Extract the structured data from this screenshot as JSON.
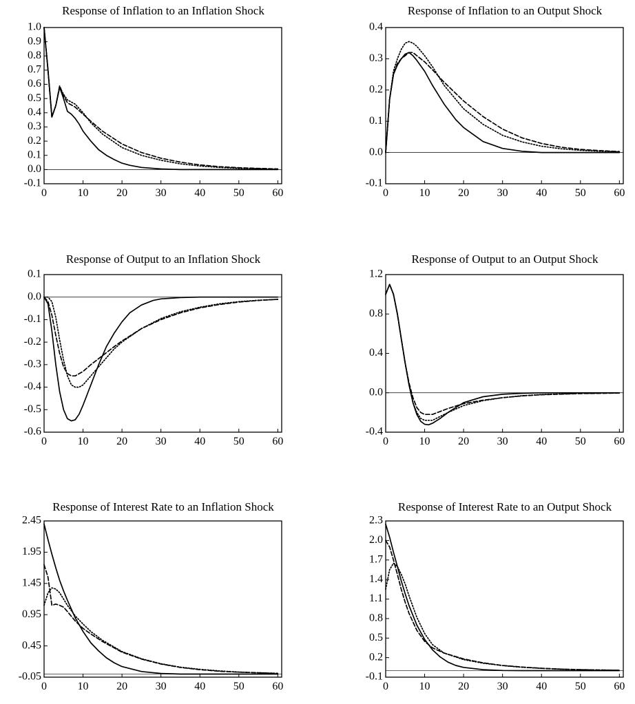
{
  "chart_data": [
    {
      "type": "line",
      "title": "Response of Inflation to an Inflation Shock",
      "xlim": [
        0,
        61
      ],
      "ylim": [
        -0.1,
        1.0
      ],
      "xticks": [
        0,
        10,
        20,
        30,
        40,
        50,
        60
      ],
      "xtick_labels": [
        "0",
        "10",
        "20",
        "30",
        "40",
        "50",
        "60"
      ],
      "yticks": [
        1.0,
        0.9,
        0.8,
        0.7,
        0.6,
        0.5,
        0.4,
        0.3,
        0.2,
        0.1,
        0.0,
        -0.1
      ],
      "ytick_labels": [
        "1.0",
        "0.9",
        "0.8",
        "0.7",
        "0.6",
        "0.5",
        "0.4",
        "0.3",
        "0.2",
        "0.1",
        "0.0",
        "-0.1"
      ],
      "zero_line": 0,
      "series": [
        {
          "style": "solid",
          "x": [
            0,
            1,
            2,
            3,
            4,
            5,
            6,
            7,
            8,
            9,
            10,
            12,
            14,
            16,
            18,
            20,
            22,
            25,
            30,
            35,
            40,
            50,
            60
          ],
          "y": [
            1.0,
            0.7,
            0.37,
            0.45,
            0.58,
            0.5,
            0.41,
            0.39,
            0.36,
            0.32,
            0.27,
            0.2,
            0.14,
            0.1,
            0.07,
            0.045,
            0.03,
            0.015,
            0.004,
            0.0,
            0.0,
            0.0,
            0.0
          ]
        },
        {
          "style": "dashed",
          "x": [
            0,
            1,
            2,
            3,
            4,
            5,
            6,
            8,
            10,
            12,
            15,
            20,
            25,
            30,
            35,
            40,
            45,
            50,
            55,
            60
          ],
          "y": [
            1.0,
            0.7,
            0.37,
            0.45,
            0.59,
            0.52,
            0.47,
            0.44,
            0.39,
            0.34,
            0.27,
            0.18,
            0.12,
            0.08,
            0.052,
            0.033,
            0.02,
            0.013,
            0.008,
            0.004
          ]
        },
        {
          "style": "dotted",
          "x": [
            0,
            1,
            2,
            3,
            4,
            5,
            6,
            8,
            10,
            12,
            15,
            20,
            25,
            30,
            35,
            40,
            45,
            50,
            55,
            60
          ],
          "y": [
            1.0,
            0.7,
            0.37,
            0.45,
            0.58,
            0.53,
            0.49,
            0.46,
            0.4,
            0.33,
            0.25,
            0.155,
            0.1,
            0.065,
            0.04,
            0.025,
            0.015,
            0.009,
            0.005,
            0.003
          ]
        }
      ]
    },
    {
      "type": "line",
      "title": "Response of Inflation to an Output Shock",
      "xlim": [
        0,
        61
      ],
      "ylim": [
        -0.1,
        0.4
      ],
      "xticks": [
        0,
        10,
        20,
        30,
        40,
        50,
        60
      ],
      "xtick_labels": [
        "0",
        "10",
        "20",
        "30",
        "40",
        "50",
        "60"
      ],
      "yticks": [
        0.4,
        0.3,
        0.2,
        0.1,
        0.0,
        -0.1
      ],
      "ytick_labels": [
        "0.4",
        "0.3",
        "0.2",
        "0.1",
        "0.0",
        "-0.1"
      ],
      "zero_line": 0,
      "series": [
        {
          "style": "solid",
          "x": [
            0,
            1,
            2,
            3,
            4,
            5,
            6,
            7,
            8,
            10,
            12,
            15,
            18,
            20,
            25,
            30,
            35,
            40,
            50,
            60
          ],
          "y": [
            0.0,
            0.17,
            0.25,
            0.28,
            0.3,
            0.315,
            0.32,
            0.31,
            0.295,
            0.26,
            0.215,
            0.155,
            0.105,
            0.08,
            0.035,
            0.013,
            0.004,
            0.0,
            0.0,
            0.0
          ]
        },
        {
          "style": "dashed",
          "x": [
            0,
            1,
            2,
            3,
            4,
            5,
            6,
            7,
            8,
            10,
            12,
            15,
            20,
            25,
            30,
            35,
            40,
            45,
            50,
            55,
            60
          ],
          "y": [
            0.0,
            0.17,
            0.25,
            0.285,
            0.3,
            0.31,
            0.32,
            0.32,
            0.31,
            0.29,
            0.265,
            0.225,
            0.165,
            0.115,
            0.075,
            0.047,
            0.029,
            0.017,
            0.01,
            0.006,
            0.003
          ]
        },
        {
          "style": "dotted",
          "x": [
            0,
            1,
            2,
            3,
            4,
            5,
            6,
            7,
            8,
            10,
            12,
            15,
            20,
            25,
            30,
            35,
            40,
            45,
            50,
            55,
            60
          ],
          "y": [
            0.0,
            0.17,
            0.26,
            0.3,
            0.33,
            0.35,
            0.355,
            0.35,
            0.34,
            0.31,
            0.275,
            0.215,
            0.14,
            0.09,
            0.055,
            0.034,
            0.02,
            0.012,
            0.007,
            0.004,
            0.002
          ]
        }
      ]
    },
    {
      "type": "line",
      "title": "Response of Output to an Inflation Shock",
      "xlim": [
        0,
        61
      ],
      "ylim": [
        -0.6,
        0.1
      ],
      "xticks": [
        0,
        10,
        20,
        30,
        40,
        50,
        60
      ],
      "xtick_labels": [
        "0",
        "10",
        "20",
        "30",
        "40",
        "50",
        "60"
      ],
      "yticks": [
        0.1,
        0.0,
        -0.1,
        -0.2,
        -0.3,
        -0.4,
        -0.5,
        -0.6
      ],
      "ytick_labels": [
        "0.1",
        "0.0",
        "-0.1",
        "-0.2",
        "-0.3",
        "-0.4",
        "-0.5",
        "-0.6"
      ],
      "zero_line": 0,
      "series": [
        {
          "style": "solid",
          "x": [
            0,
            1,
            2,
            3,
            4,
            5,
            6,
            7,
            8,
            9,
            10,
            12,
            14,
            16,
            18,
            20,
            22,
            25,
            28,
            30,
            35,
            40,
            50,
            60
          ],
          "y": [
            0.0,
            -0.03,
            -0.15,
            -0.3,
            -0.42,
            -0.5,
            -0.54,
            -0.55,
            -0.545,
            -0.52,
            -0.48,
            -0.39,
            -0.3,
            -0.22,
            -0.16,
            -0.11,
            -0.07,
            -0.035,
            -0.015,
            -0.008,
            -0.002,
            0.0,
            0.0,
            0.0
          ]
        },
        {
          "style": "dashed",
          "x": [
            0,
            1,
            2,
            3,
            4,
            5,
            6,
            7,
            8,
            10,
            12,
            15,
            18,
            20,
            25,
            30,
            35,
            40,
            45,
            50,
            55,
            60
          ],
          "y": [
            0.0,
            -0.02,
            -0.08,
            -0.17,
            -0.25,
            -0.31,
            -0.34,
            -0.35,
            -0.35,
            -0.33,
            -0.3,
            -0.26,
            -0.22,
            -0.195,
            -0.14,
            -0.1,
            -0.07,
            -0.048,
            -0.033,
            -0.022,
            -0.015,
            -0.01
          ]
        },
        {
          "style": "dotted",
          "x": [
            0,
            1,
            2,
            3,
            4,
            5,
            6,
            7,
            8,
            9,
            10,
            12,
            15,
            18,
            20,
            25,
            30,
            35,
            40,
            45,
            50,
            55,
            60
          ],
          "y": [
            0.0,
            0.0,
            -0.02,
            -0.09,
            -0.19,
            -0.28,
            -0.35,
            -0.39,
            -0.4,
            -0.4,
            -0.39,
            -0.35,
            -0.29,
            -0.23,
            -0.2,
            -0.14,
            -0.095,
            -0.065,
            -0.045,
            -0.03,
            -0.02,
            -0.014,
            -0.01
          ]
        }
      ]
    },
    {
      "type": "line",
      "title": "Response of Output to an Output Shock",
      "xlim": [
        0,
        61
      ],
      "ylim": [
        -0.4,
        1.2
      ],
      "xticks": [
        0,
        10,
        20,
        30,
        40,
        50,
        60
      ],
      "xtick_labels": [
        "0",
        "10",
        "20",
        "30",
        "40",
        "50",
        "60"
      ],
      "yticks": [
        1.2,
        0.8,
        0.4,
        0.0,
        -0.4
      ],
      "ytick_labels": [
        "1.2",
        "0.8",
        "0.4",
        "0.0",
        "-0.4"
      ],
      "zero_line": 0,
      "series": [
        {
          "style": "solid",
          "x": [
            0,
            1,
            2,
            3,
            4,
            5,
            6,
            7,
            8,
            9,
            10,
            11,
            12,
            14,
            16,
            18,
            20,
            25,
            30,
            35,
            40,
            50,
            60
          ],
          "y": [
            1.0,
            1.1,
            1.0,
            0.8,
            0.55,
            0.3,
            0.08,
            -0.1,
            -0.22,
            -0.29,
            -0.32,
            -0.325,
            -0.31,
            -0.26,
            -0.2,
            -0.15,
            -0.1,
            -0.04,
            -0.015,
            -0.005,
            0.0,
            0.0,
            0.0
          ]
        },
        {
          "style": "dashed",
          "x": [
            0,
            1,
            2,
            3,
            4,
            5,
            6,
            7,
            8,
            9,
            10,
            12,
            14,
            16,
            20,
            25,
            30,
            35,
            40,
            50,
            60
          ],
          "y": [
            1.0,
            1.1,
            1.0,
            0.8,
            0.55,
            0.3,
            0.1,
            -0.05,
            -0.15,
            -0.2,
            -0.22,
            -0.22,
            -0.19,
            -0.16,
            -0.11,
            -0.075,
            -0.05,
            -0.032,
            -0.02,
            -0.008,
            -0.003
          ]
        },
        {
          "style": "dotted",
          "x": [
            0,
            1,
            2,
            3,
            4,
            5,
            6,
            7,
            8,
            9,
            10,
            12,
            14,
            16,
            20,
            25,
            30,
            35,
            40,
            50,
            60
          ],
          "y": [
            1.0,
            1.1,
            1.0,
            0.8,
            0.55,
            0.3,
            0.08,
            -0.1,
            -0.2,
            -0.26,
            -0.28,
            -0.28,
            -0.24,
            -0.2,
            -0.13,
            -0.08,
            -0.05,
            -0.03,
            -0.018,
            -0.006,
            -0.002
          ]
        }
      ]
    },
    {
      "type": "line",
      "title": "Response of Interest Rate to an Inflation Shock",
      "xlim": [
        0,
        61
      ],
      "ylim": [
        -0.05,
        2.45
      ],
      "xticks": [
        0,
        10,
        20,
        30,
        40,
        50,
        60
      ],
      "xtick_labels": [
        "0",
        "10",
        "20",
        "30",
        "40",
        "50",
        "60"
      ],
      "yticks": [
        2.45,
        1.95,
        1.45,
        0.95,
        0.45,
        -0.05
      ],
      "ytick_labels": [
        "2.45",
        "1.95",
        "1.45",
        "0.95",
        "0.45",
        "-0.05"
      ],
      "zero_line": 0,
      "series": [
        {
          "style": "solid",
          "x": [
            0,
            1,
            2,
            3,
            4,
            5,
            6,
            8,
            10,
            12,
            14,
            16,
            18,
            20,
            25,
            30,
            35,
            40,
            50,
            60
          ],
          "y": [
            2.4,
            2.15,
            1.92,
            1.7,
            1.5,
            1.33,
            1.18,
            0.9,
            0.68,
            0.5,
            0.37,
            0.26,
            0.18,
            0.12,
            0.04,
            0.01,
            0.0,
            0.0,
            0.0,
            0.0
          ]
        },
        {
          "style": "dashed",
          "x": [
            0,
            1,
            2,
            3,
            4,
            5,
            6,
            8,
            10,
            12,
            15,
            20,
            25,
            30,
            35,
            40,
            45,
            50,
            55,
            60
          ],
          "y": [
            1.75,
            1.55,
            1.1,
            1.12,
            1.1,
            1.07,
            1.0,
            0.85,
            0.73,
            0.64,
            0.52,
            0.35,
            0.24,
            0.16,
            0.105,
            0.07,
            0.045,
            0.03,
            0.02,
            0.01
          ]
        },
        {
          "style": "dotted",
          "x": [
            0,
            1,
            2,
            3,
            4,
            5,
            6,
            8,
            10,
            12,
            15,
            20,
            25,
            30,
            35,
            40,
            45,
            50,
            55,
            60
          ],
          "y": [
            1.1,
            1.3,
            1.38,
            1.36,
            1.3,
            1.2,
            1.1,
            0.93,
            0.8,
            0.68,
            0.54,
            0.36,
            0.245,
            0.165,
            0.11,
            0.075,
            0.05,
            0.032,
            0.02,
            0.012
          ]
        }
      ]
    },
    {
      "type": "line",
      "title": "Response of Interest Rate to an Output Shock",
      "xlim": [
        0,
        61
      ],
      "ylim": [
        -0.1,
        2.3
      ],
      "xticks": [
        0,
        10,
        20,
        30,
        40,
        50,
        60
      ],
      "xtick_labels": [
        "0",
        "10",
        "20",
        "30",
        "40",
        "50",
        "60"
      ],
      "yticks": [
        2.3,
        2.0,
        1.7,
        1.4,
        1.1,
        0.8,
        0.5,
        0.2,
        -0.1
      ],
      "ytick_labels": [
        "2.3",
        "2.0",
        "1.7",
        "1.4",
        "1.1",
        "0.8",
        "0.5",
        "0.2",
        "-0.1"
      ],
      "zero_line": 0,
      "series": [
        {
          "style": "solid",
          "x": [
            0,
            1,
            2,
            3,
            4,
            5,
            6,
            8,
            10,
            12,
            14,
            16,
            18,
            20,
            25,
            30,
            35,
            40,
            50,
            60
          ],
          "y": [
            2.25,
            2.05,
            1.82,
            1.6,
            1.38,
            1.18,
            1.0,
            0.7,
            0.48,
            0.32,
            0.21,
            0.13,
            0.08,
            0.05,
            0.015,
            0.003,
            0.0,
            0.0,
            0.0,
            0.0
          ]
        },
        {
          "style": "dashed",
          "x": [
            0,
            1,
            2,
            3,
            4,
            5,
            6,
            8,
            10,
            12,
            15,
            20,
            25,
            30,
            35,
            40,
            45,
            50,
            55,
            60
          ],
          "y": [
            2.0,
            1.9,
            1.7,
            1.48,
            1.25,
            1.05,
            0.88,
            0.62,
            0.45,
            0.35,
            0.27,
            0.18,
            0.12,
            0.08,
            0.055,
            0.036,
            0.024,
            0.015,
            0.01,
            0.006
          ]
        },
        {
          "style": "dotted",
          "x": [
            0,
            1,
            2,
            3,
            4,
            5,
            6,
            8,
            10,
            12,
            15,
            20,
            25,
            30,
            35,
            40,
            45,
            50,
            55,
            60
          ],
          "y": [
            1.25,
            1.55,
            1.65,
            1.6,
            1.48,
            1.33,
            1.15,
            0.82,
            0.57,
            0.4,
            0.27,
            0.17,
            0.115,
            0.078,
            0.052,
            0.035,
            0.023,
            0.015,
            0.01,
            0.006
          ]
        }
      ]
    }
  ]
}
